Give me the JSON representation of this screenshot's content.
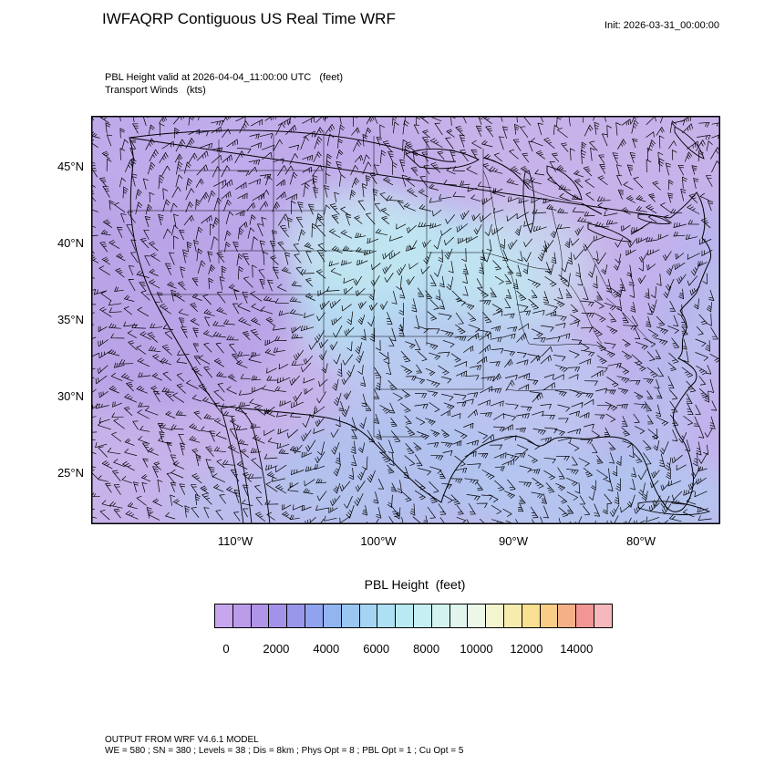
{
  "header": {
    "title": "IWFAQRP Contiguous US Real Time WRF",
    "init_label": "Init: 2026-03-31_00:00:00"
  },
  "subtitle": {
    "line1": "PBL Height valid at 2026-04-04_11:00:00 UTC   (feet)",
    "line2": "Transport Winds   (kts)"
  },
  "map": {
    "y_ticks": [
      "45°N",
      "40°N",
      "35°N",
      "30°N",
      "25°N"
    ],
    "x_ticks": [
      "110°W",
      "100°W",
      "90°W",
      "80°W"
    ]
  },
  "colorbar": {
    "title": "PBL Height  (feet)",
    "tick_labels": [
      "0",
      "2000",
      "4000",
      "6000",
      "8000",
      "10000",
      "12000",
      "14000"
    ],
    "colors": [
      "#c7a6ee",
      "#bb9cea",
      "#af94e8",
      "#a392e8",
      "#9897ea",
      "#91a3ee",
      "#92b5f0",
      "#9ac6f2",
      "#a4d4f2",
      "#aee0f3",
      "#b9e9f3",
      "#c5eff2",
      "#d2f3f0",
      "#dff5ee",
      "#ecf7e8",
      "#f4f4d0",
      "#f7ecae",
      "#f9df92",
      "#f9cd86",
      "#f6b088",
      "#f19693",
      "#f5b8bd"
    ]
  },
  "footer": {
    "line1": "OUTPUT FROM WRF V4.6.1 MODEL",
    "line2": "WE = 580 ; SN = 380 ; Levels = 38 ; Dis = 8km ; Phys Opt = 8 ; PBL Opt = 1 ; Cu Opt = 5"
  },
  "chart_data": {
    "type": "heatmap",
    "title": "PBL Height (feet)",
    "overlay": "Transport Winds (kts) shown as wind barbs over entire domain",
    "valid_time": "2026-04-04_11:00:00 UTC",
    "init_time": "2026-03-31_00:00:00",
    "x_tick_labels": [
      "110°W",
      "100°W",
      "90°W",
      "80°W"
    ],
    "y_tick_labels": [
      "45°N",
      "40°N",
      "35°N",
      "30°N",
      "25°N"
    ],
    "colorbar_ticks": [
      0,
      2000,
      4000,
      6000,
      8000,
      10000,
      12000,
      14000
    ],
    "colorbar_units": "feet",
    "legend_position": "bottom horizontal",
    "field_summary": "PBL heights mostly 0-3000 ft (violet/purple shades) across the CONUS domain, with patches of 3000-6000 ft (cyan/light blue) over the central plains, Texas, the Gulf of Mexico and the western Atlantic; no values in the yellow/orange/red range (8000+ ft) are visible"
  }
}
